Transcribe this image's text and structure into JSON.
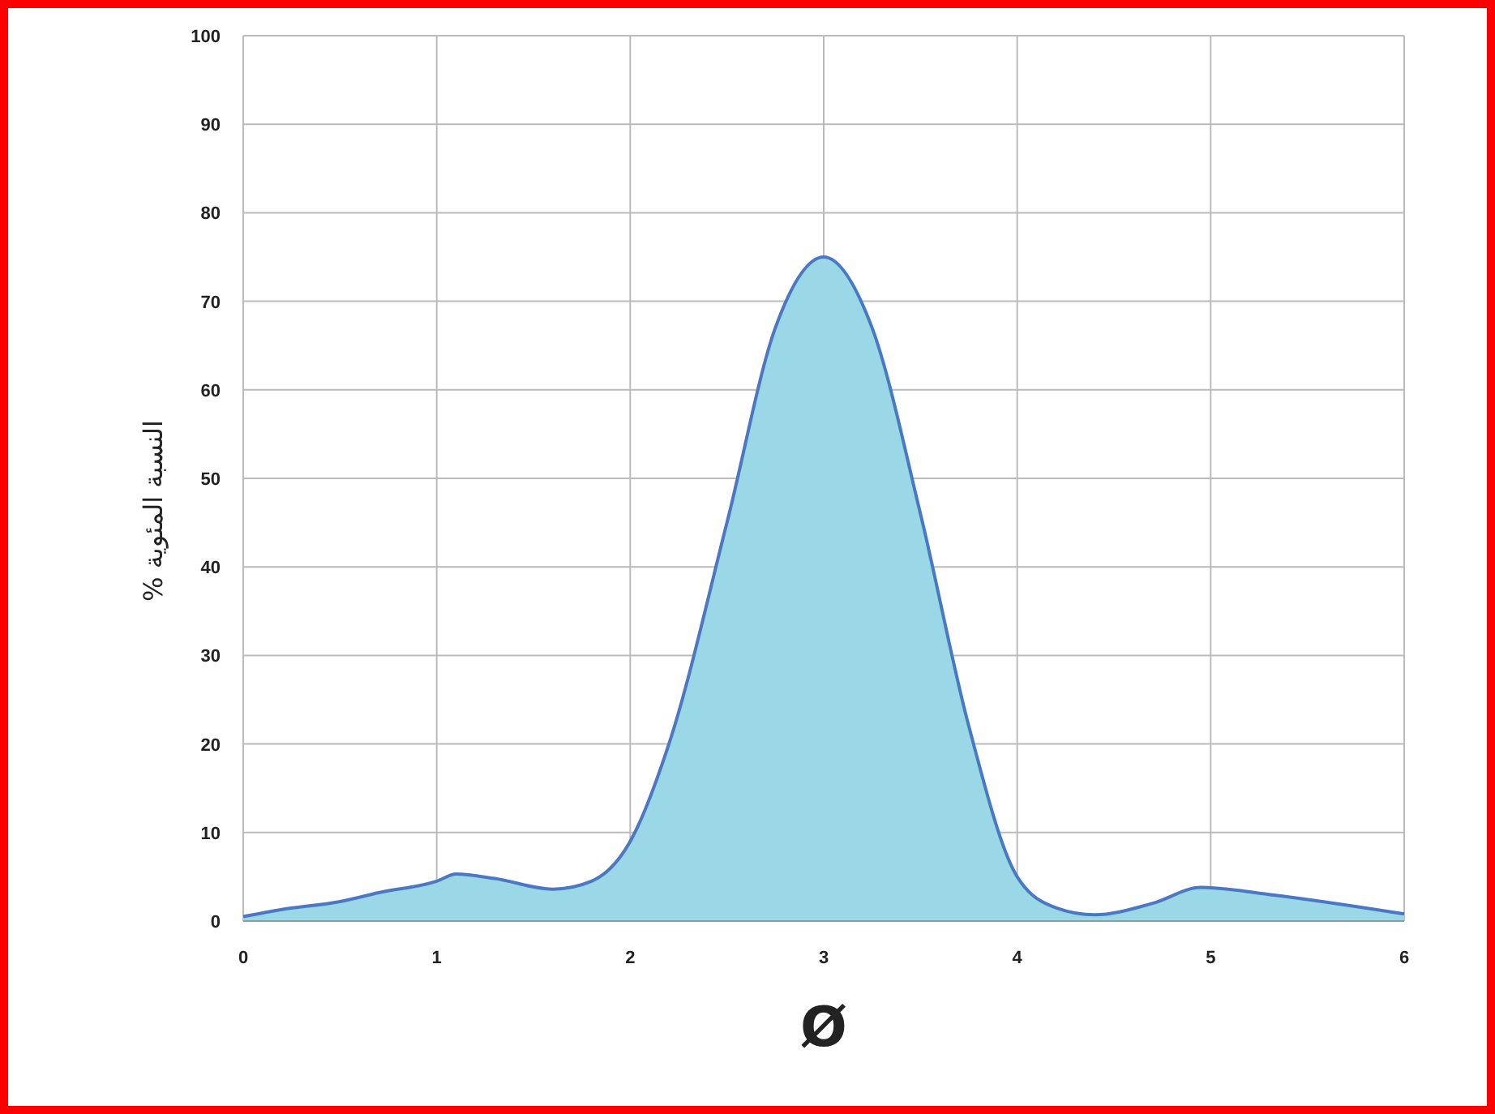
{
  "chart_data": {
    "type": "area",
    "xlabel": "Ø",
    "ylabel": "% النسبة المئوية",
    "x": [
      0,
      0.2,
      0.5,
      0.7,
      1,
      1.1,
      1.3,
      1.6,
      1.8,
      2,
      2.2,
      2.5,
      2.75,
      3,
      3.25,
      3.5,
      3.75,
      4,
      4.2,
      4.4,
      4.7,
      4.95,
      5.3,
      6
    ],
    "series": [
      {
        "color": "#4a78c2",
        "values": [
          0.5,
          1.3,
          2.2,
          3.2,
          4.5,
          5.3,
          4.8,
          3.6,
          4.5,
          9,
          20,
          45,
          67,
          75,
          67,
          46,
          22,
          5,
          1.5,
          0.7,
          2,
          3.8,
          3,
          0.8
        ]
      }
    ],
    "xlim": [
      0,
      6
    ],
    "xticks": [
      0,
      1,
      2,
      3,
      4,
      5,
      6
    ],
    "ylim": [
      0,
      100
    ],
    "yticks": [
      0,
      10,
      20,
      30,
      40,
      50,
      60,
      70,
      80,
      90,
      100
    ],
    "grid": true
  }
}
